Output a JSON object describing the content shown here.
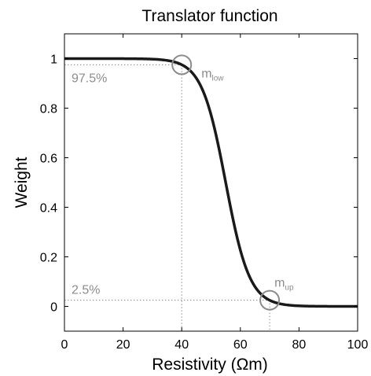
{
  "chart_data": {
    "type": "line",
    "title": "Translator function",
    "xlabel": "Resistivity (Ωm)",
    "ylabel": "Weight",
    "xlim": [
      0,
      100
    ],
    "ylim": [
      -0.1,
      1.1
    ],
    "x_ticks": [
      0,
      20,
      40,
      60,
      80,
      100
    ],
    "y_ticks": [
      0,
      0.2,
      0.4,
      0.6,
      0.8,
      1
    ],
    "grid": false,
    "series": [
      {
        "color": "#1a1a1a",
        "function": "logistic",
        "midpoint": 55,
        "slope_scale": 4.08,
        "x_range": [
          0,
          100
        ]
      }
    ],
    "annotations": [
      {
        "id": "low",
        "x": 40,
        "y": 0.975,
        "label_main": "m",
        "label_sub": "low",
        "level_label": "97.5%"
      },
      {
        "id": "up",
        "x": 70,
        "y": 0.025,
        "label_main": "m",
        "label_sub": "up",
        "level_label": "2.5%"
      }
    ],
    "annotation_color": "#8c8c8c"
  }
}
